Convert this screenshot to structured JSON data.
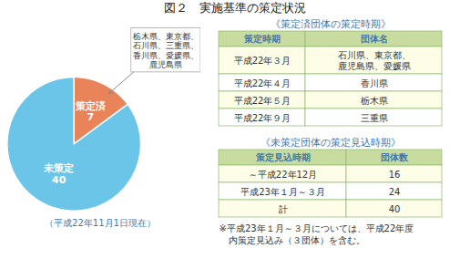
{
  "chart_data": [
    {
      "type": "pie",
      "title": "図２　実施基準の策定状況",
      "categories": [
        "策定済",
        "未策定"
      ],
      "values": [
        7,
        40
      ],
      "colors": [
        "#E8835A",
        "#6BC5E8"
      ],
      "data_labels": true,
      "annotations": [
        "栃木県、東京都、\n石川県、三重県、\n香川県、愛媛県、\n鹿児島県"
      ],
      "caption": "（平成22年11月1日現在）"
    },
    {
      "type": "table",
      "title": "《策定済団体の策定時期》",
      "columns": [
        "策定時期",
        "団体名"
      ],
      "rows": [
        [
          "平成22年３月",
          "石川県、東京都、\n鹿児島県、愛媛県"
        ],
        [
          "平成22年４月",
          "香川県"
        ],
        [
          "平成22年５月",
          "栃木県"
        ],
        [
          "平成22年９月",
          "三重県"
        ]
      ],
      "color": "#C8DCA0"
    },
    {
      "type": "table",
      "title": "《未策定団体の策定見込時期》",
      "columns": [
        "策定見込時期",
        "団体数"
      ],
      "rows": [
        [
          "～平成22年12月",
          "16"
        ],
        [
          "平成23年１月～３月",
          "24"
        ],
        [
          "計",
          "40"
        ]
      ],
      "color": "#C8DCA0",
      "caption": "※平成23年１月～３月については、平成22年度\n　内策定見込み（３団体）を含む。"
    }
  ]
}
